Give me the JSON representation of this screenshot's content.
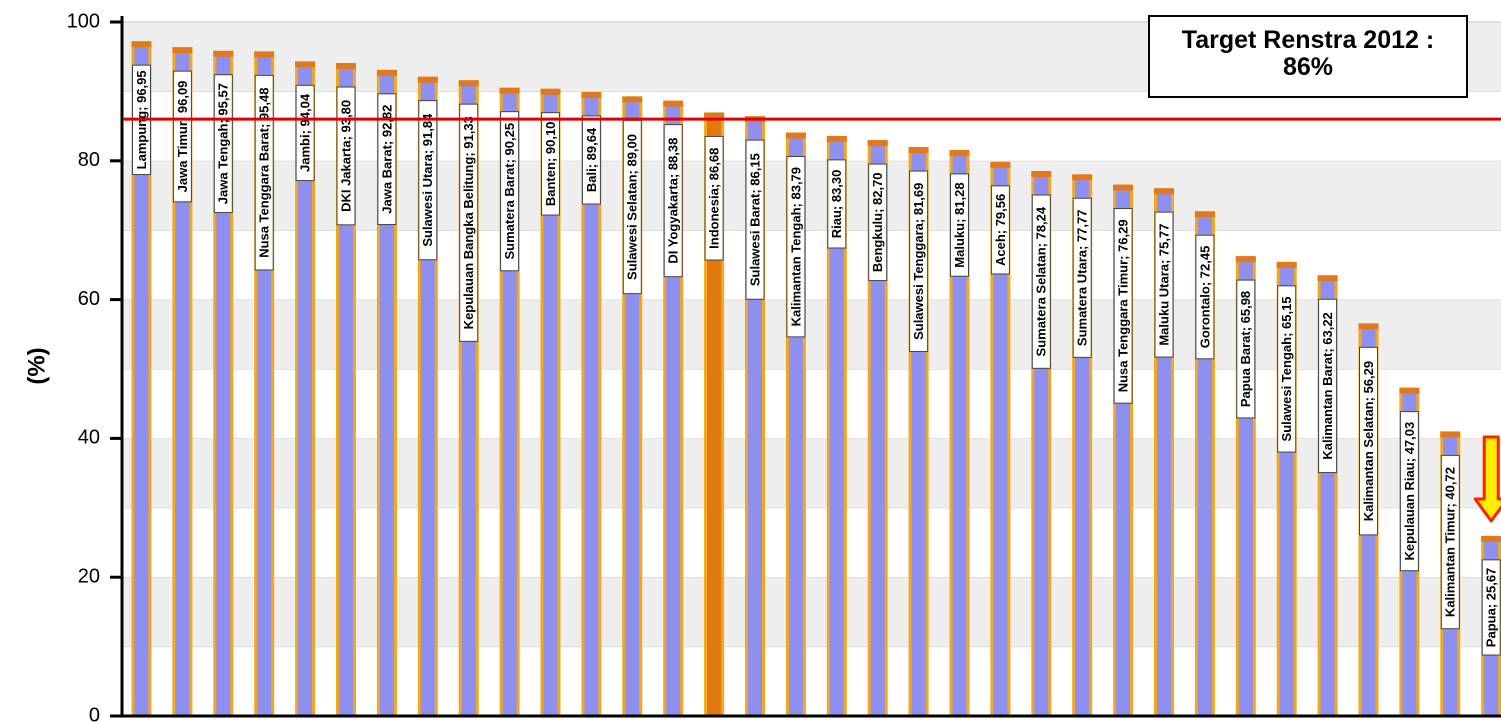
{
  "chart_data": {
    "type": "bar",
    "ylabel": "(%)",
    "ylim": [
      0,
      100
    ],
    "yticks": [
      0,
      20,
      40,
      60,
      80,
      100
    ],
    "grid": "horizontal bands",
    "target": {
      "line1": "Target Renstra 2012 :",
      "line2": "86%",
      "value": 86
    },
    "highlight_category": "Indonesia",
    "arrow_category": "Papua",
    "colors": {
      "bar_fill": "#8f8ff0",
      "bar_border": "#f2a81d",
      "bar_cap": "#e07a1a",
      "highlight_fill": "#e07a10",
      "target_line": "#e00000",
      "arrow_fill": "#ffee00",
      "arrow_stroke": "#ff2200",
      "band_light": "#ffffff",
      "band_gray": "#eeeeee"
    },
    "data_labels": [
      "Lampung; 96,95",
      "Jawa Timur; 96,09",
      "Jawa Tengah; 95,57",
      "Nusa Tenggara Barat; 95,48",
      "Jambi; 94,04",
      "DKI Jakarta; 93,80",
      "Jawa Barat; 92,82",
      "Sulawesi Utara; 91,84",
      "Kepulauan Bangka Belitung; 91,33",
      "Sumatera Barat; 90,25",
      "Banten; 90,10",
      "Bali; 89,64",
      "Sulawesi Selatan; 89,00",
      "DI Yogyakarta; 88,38",
      "Indonesia; 86,68",
      "Sulawesi Barat; 86,15",
      "Kalimantan Tengah; 83,79",
      "Riau; 83,30",
      "Bengkulu; 82,70",
      "Sulawesi Tenggara; 81,69",
      "Maluku; 81,28",
      "Aceh; 79,56",
      "Sumatera Selatan; 78,24",
      "Sumatera Utara; 77,77",
      "Nusa Tenggara Timur; 76,29",
      "Maluku Utara; 75,77",
      "Gorontalo; 72,45",
      "Papua Barat; 65,98",
      "Sulawesi Tengah; 65,15",
      "Kalimantan Barat; 63,22",
      "Kalimantan Selatan; 56,29",
      "Kepulauan Riau; 47,03",
      "Kalimantan Timur; 40,72",
      "Papua; 25,67"
    ],
    "categories": [
      "Lampung",
      "Jawa Timur",
      "Jawa Tengah",
      "Nusa Tenggara Barat",
      "Jambi",
      "DKI Jakarta",
      "Jawa Barat",
      "Sulawesi Utara",
      "Kepulauan Bangka Belitung",
      "Sumatera Barat",
      "Banten",
      "Bali",
      "Sulawesi Selatan",
      "DI Yogyakarta",
      "Indonesia",
      "Sulawesi Barat",
      "Kalimantan Tengah",
      "Riau",
      "Bengkulu",
      "Sulawesi Tenggara",
      "Maluku",
      "Aceh",
      "Sumatera Selatan",
      "Sumatera Utara",
      "Nusa Tenggara Timur",
      "Maluku Utara",
      "Gorontalo",
      "Papua Barat",
      "Sulawesi Tengah",
      "Kalimantan Barat",
      "Kalimantan Selatan",
      "Kepulauan Riau",
      "Kalimantan Timur",
      "Papua"
    ],
    "values": [
      96.95,
      96.09,
      95.57,
      95.48,
      94.04,
      93.8,
      92.82,
      91.84,
      91.33,
      90.25,
      90.1,
      89.64,
      89.0,
      88.38,
      86.68,
      86.15,
      83.79,
      83.3,
      82.7,
      81.69,
      81.28,
      79.56,
      78.24,
      77.77,
      76.29,
      75.77,
      72.45,
      65.98,
      65.15,
      63.22,
      56.29,
      47.03,
      40.72,
      25.67
    ]
  }
}
